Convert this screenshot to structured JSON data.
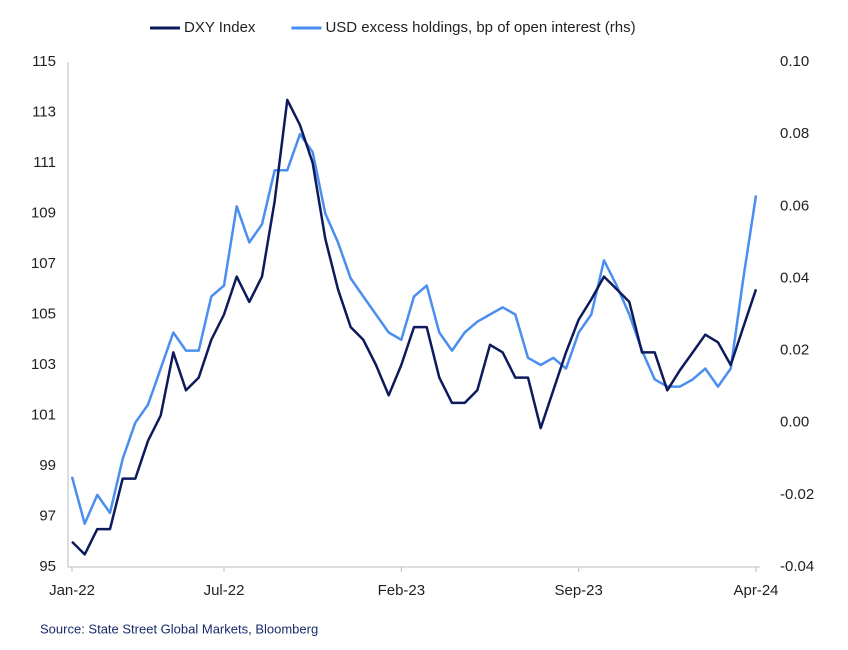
{
  "chart_data": {
    "type": "line",
    "source": "Source: State Street Global Markets, Bloomberg",
    "categories": [
      "Jan-22",
      null,
      null,
      null,
      null,
      null,
      null,
      null,
      null,
      null,
      null,
      null,
      "Jul-22",
      null,
      null,
      null,
      null,
      null,
      null,
      null,
      null,
      null,
      null,
      null,
      null,
      null,
      "Feb-23",
      null,
      null,
      null,
      null,
      null,
      null,
      null,
      null,
      null,
      null,
      null,
      null,
      null,
      "Sep-23",
      null,
      null,
      null,
      null,
      null,
      null,
      null,
      null,
      null,
      null,
      null,
      null,
      null,
      "Apr-24"
    ],
    "series": [
      {
        "name": "DXY Index",
        "color": "#0d1a5c",
        "axis": "y",
        "values": [
          96,
          95.5,
          96.5,
          96.5,
          98.5,
          98.5,
          100,
          101,
          103.5,
          102,
          102.5,
          104,
          105,
          106.5,
          105.5,
          106.5,
          109.5,
          113.5,
          112.5,
          111,
          108,
          106,
          104.5,
          104,
          103,
          101.8,
          103,
          104.5,
          104.5,
          102.5,
          101.5,
          101.5,
          102,
          103.8,
          103.5,
          102.5,
          102.5,
          100.5,
          102,
          103.5,
          104.8,
          105.6,
          106.5,
          106,
          105.5,
          103.5,
          103.5,
          102,
          102.8,
          103.5,
          104.2,
          103.9,
          103,
          104.5,
          106
        ]
      },
      {
        "name": "USD excess holdings, bp of open interest (rhs)",
        "color": "#4a8ef0",
        "axis": "y2",
        "values": [
          -0.015,
          -0.028,
          -0.02,
          -0.025,
          -0.01,
          0.0,
          0.005,
          0.015,
          0.025,
          0.02,
          0.02,
          0.035,
          0.038,
          0.06,
          0.05,
          0.055,
          0.07,
          0.07,
          0.08,
          0.075,
          0.058,
          0.05,
          0.04,
          0.035,
          0.03,
          0.025,
          0.023,
          0.035,
          0.038,
          0.025,
          0.02,
          0.025,
          0.028,
          0.03,
          0.032,
          0.03,
          0.018,
          0.016,
          0.018,
          0.015,
          0.025,
          0.03,
          0.045,
          0.038,
          0.03,
          0.02,
          0.012,
          0.01,
          0.01,
          0.012,
          0.015,
          0.01,
          0.015,
          0.04,
          0.063
        ]
      }
    ],
    "ylim": [
      95,
      115
    ],
    "yticks": [
      95,
      97,
      99,
      101,
      103,
      105,
      107,
      109,
      111,
      113,
      115
    ],
    "y2lim": [
      -0.04,
      0.1
    ],
    "y2ticks": [
      {
        "value": -0.04,
        "label": "-0.04"
      },
      {
        "value": -0.02,
        "label": "-0.02"
      },
      {
        "value": 0,
        "label": "0.00"
      },
      {
        "value": 0.02,
        "label": "0.02"
      },
      {
        "value": 0.04,
        "label": "0.04"
      },
      {
        "value": 0.06,
        "label": "0.06"
      },
      {
        "value": 0.08,
        "label": "0.08"
      },
      {
        "value": 0.1,
        "label": "0.10"
      }
    ],
    "grid": false,
    "legend": "top"
  }
}
